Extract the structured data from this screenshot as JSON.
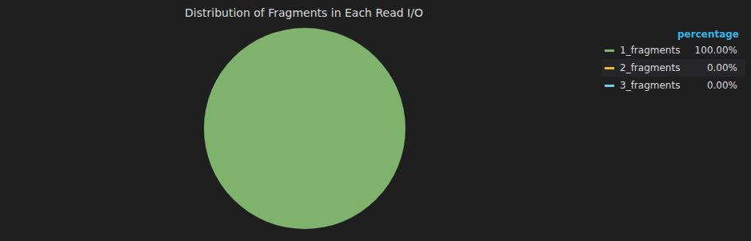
{
  "chart_data": {
    "type": "pie",
    "title": "Distribution of Fragments in Each Read I/O",
    "legend_title": "percentage",
    "categories": [
      "1_fragments",
      "2_fragments",
      "3_fragments"
    ],
    "values": [
      100,
      0,
      0
    ],
    "value_labels": [
      "100.00%",
      "0.00%",
      "0.00%"
    ],
    "colors": [
      "#7eb26d",
      "#eab839",
      "#6ed0e0"
    ],
    "legend": "upper right"
  }
}
